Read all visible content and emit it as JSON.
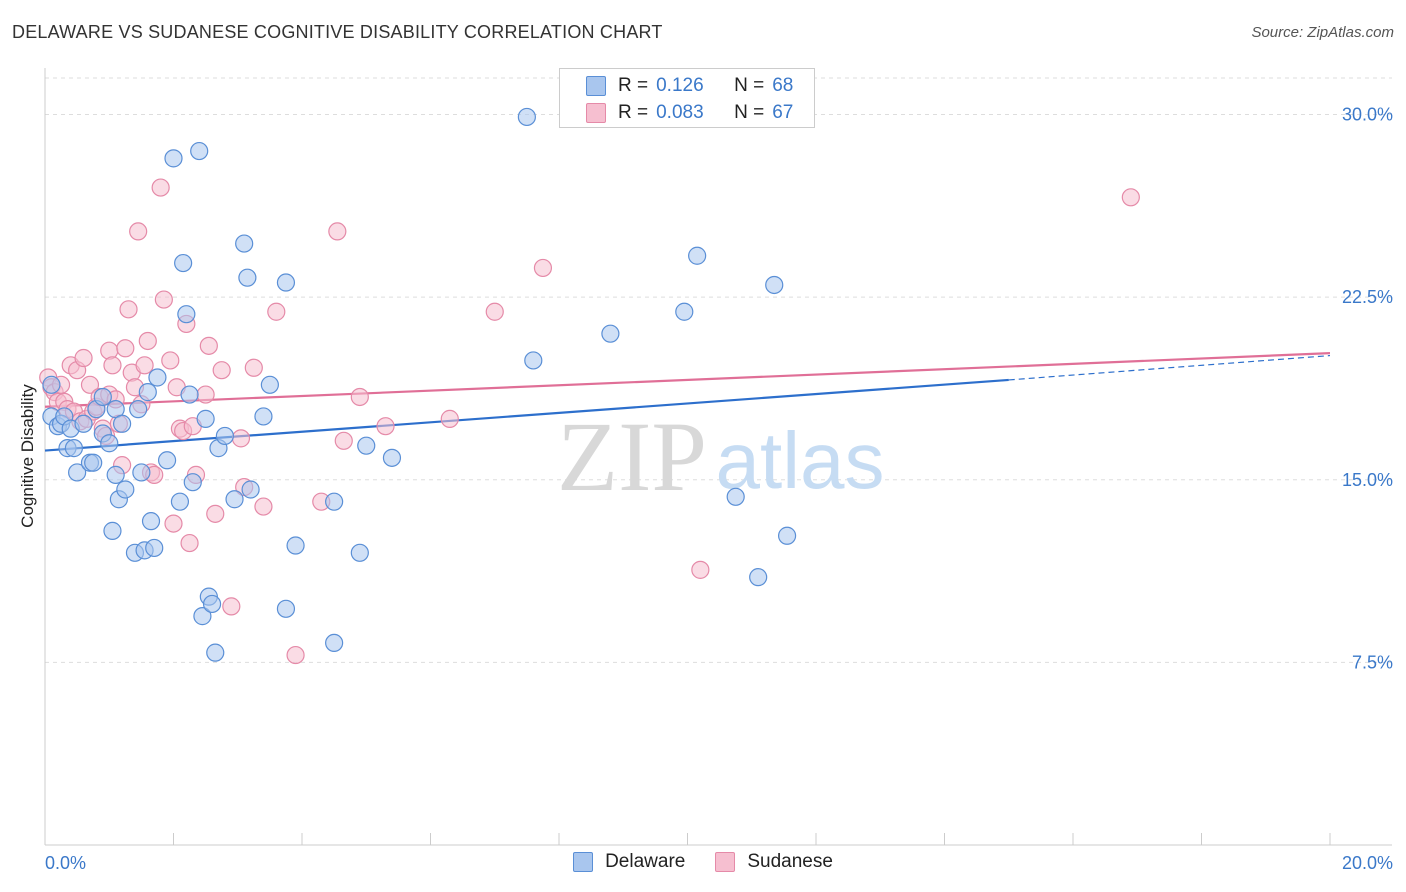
{
  "header": {
    "title": "DELAWARE VS SUDANESE COGNITIVE DISABILITY CORRELATION CHART",
    "source": "Source: ZipAtlas.com"
  },
  "watermark": {
    "zip": "ZIP",
    "atlas": "atlas"
  },
  "legend": {
    "rows": [
      {
        "r_label": "R =",
        "r_value": "0.126",
        "n_label": "N =",
        "n_value": "68"
      },
      {
        "r_label": "R =",
        "r_value": "0.083",
        "n_label": "N =",
        "n_value": "67"
      }
    ],
    "bottom": [
      {
        "label": "Delaware"
      },
      {
        "label": "Sudanese"
      }
    ]
  },
  "colors": {
    "delaware_fill": "#a9c6ee",
    "delaware_stroke": "#5a8fd6",
    "delaware_line": "#2d6fcc",
    "sudanese_fill": "#f6bfd0",
    "sudanese_stroke": "#e58aa8",
    "sudanese_line": "#e06f97",
    "tick_label": "#3a78c9",
    "grid": "#dddddd"
  },
  "chart_data": {
    "type": "scatter",
    "title": "DELAWARE VS SUDANESE COGNITIVE DISABILITY CORRELATION CHART",
    "xlabel": "",
    "ylabel": "Cognitive Disability",
    "xlim": [
      0,
      20
    ],
    "ylim": [
      0,
      31.5
    ],
    "x_tick_labels": [
      "0.0%",
      "20.0%"
    ],
    "y_ticks": [
      7.5,
      15.0,
      22.5,
      30.0
    ],
    "y_tick_labels": [
      "7.5%",
      "15.0%",
      "22.5%",
      "30.0%"
    ],
    "grid": "horizontal dashed",
    "legend_position": "top-center",
    "series": [
      {
        "name": "Delaware",
        "trend": {
          "x0": 0,
          "y0": 16.2,
          "x1": 15.0,
          "y1": 19.1,
          "dashed_to_x": 20.0,
          "dashed_to_y": 20.1
        },
        "points": [
          [
            0.1,
            18.9
          ],
          [
            0.1,
            17.6
          ],
          [
            0.2,
            17.2
          ],
          [
            0.25,
            17.3
          ],
          [
            0.3,
            17.6
          ],
          [
            0.35,
            16.3
          ],
          [
            0.4,
            17.1
          ],
          [
            0.45,
            16.3
          ],
          [
            0.5,
            15.3
          ],
          [
            0.6,
            17.3
          ],
          [
            0.7,
            15.7
          ],
          [
            0.75,
            15.7
          ],
          [
            0.8,
            17.9
          ],
          [
            0.9,
            18.4
          ],
          [
            0.9,
            16.9
          ],
          [
            1.0,
            16.5
          ],
          [
            1.05,
            12.9
          ],
          [
            1.1,
            17.9
          ],
          [
            1.1,
            15.2
          ],
          [
            1.15,
            14.2
          ],
          [
            1.2,
            17.3
          ],
          [
            1.25,
            14.6
          ],
          [
            1.4,
            12.0
          ],
          [
            1.45,
            17.9
          ],
          [
            1.5,
            15.3
          ],
          [
            1.55,
            12.1
          ],
          [
            1.6,
            18.6
          ],
          [
            1.65,
            13.3
          ],
          [
            1.7,
            12.2
          ],
          [
            1.75,
            19.2
          ],
          [
            1.9,
            15.8
          ],
          [
            2.0,
            28.2
          ],
          [
            2.1,
            14.1
          ],
          [
            2.15,
            23.9
          ],
          [
            2.2,
            21.8
          ],
          [
            2.25,
            18.5
          ],
          [
            2.3,
            14.9
          ],
          [
            2.4,
            28.5
          ],
          [
            2.45,
            9.4
          ],
          [
            2.5,
            17.5
          ],
          [
            2.55,
            10.2
          ],
          [
            2.6,
            9.9
          ],
          [
            2.65,
            7.9
          ],
          [
            2.7,
            16.3
          ],
          [
            2.8,
            16.8
          ],
          [
            2.95,
            14.2
          ],
          [
            3.1,
            24.7
          ],
          [
            3.15,
            23.3
          ],
          [
            3.2,
            14.6
          ],
          [
            3.4,
            17.6
          ],
          [
            3.5,
            18.9
          ],
          [
            3.75,
            23.1
          ],
          [
            3.75,
            9.7
          ],
          [
            3.9,
            12.3
          ],
          [
            4.5,
            8.3
          ],
          [
            4.5,
            14.1
          ],
          [
            4.9,
            12.0
          ],
          [
            5.0,
            16.4
          ],
          [
            5.4,
            15.9
          ],
          [
            7.5,
            29.9
          ],
          [
            7.6,
            19.9
          ],
          [
            8.8,
            21.0
          ],
          [
            9.95,
            21.9
          ],
          [
            10.15,
            24.2
          ],
          [
            10.75,
            14.3
          ],
          [
            11.1,
            11.0
          ],
          [
            11.35,
            23.0
          ],
          [
            11.55,
            12.7
          ]
        ]
      },
      {
        "name": "Sudanese",
        "trend": {
          "x0": 0,
          "y0": 18.0,
          "x1": 20.0,
          "y1": 20.2
        },
        "points": [
          [
            0.05,
            19.2
          ],
          [
            0.1,
            18.8
          ],
          [
            0.15,
            18.6
          ],
          [
            0.2,
            18.2
          ],
          [
            0.25,
            18.9
          ],
          [
            0.3,
            18.2
          ],
          [
            0.35,
            17.9
          ],
          [
            0.4,
            19.7
          ],
          [
            0.45,
            17.8
          ],
          [
            0.5,
            19.5
          ],
          [
            0.55,
            17.4
          ],
          [
            0.6,
            20.0
          ],
          [
            0.65,
            17.5
          ],
          [
            0.7,
            18.9
          ],
          [
            0.75,
            17.8
          ],
          [
            0.8,
            18.0
          ],
          [
            0.85,
            18.4
          ],
          [
            0.9,
            17.1
          ],
          [
            0.95,
            16.8
          ],
          [
            1.0,
            18.5
          ],
          [
            1.0,
            20.3
          ],
          [
            1.05,
            19.7
          ],
          [
            1.1,
            18.3
          ],
          [
            1.15,
            17.3
          ],
          [
            1.2,
            15.6
          ],
          [
            1.25,
            20.4
          ],
          [
            1.3,
            22.0
          ],
          [
            1.35,
            19.4
          ],
          [
            1.4,
            18.8
          ],
          [
            1.45,
            25.2
          ],
          [
            1.5,
            18.1
          ],
          [
            1.55,
            19.7
          ],
          [
            1.6,
            20.7
          ],
          [
            1.65,
            15.3
          ],
          [
            1.7,
            15.2
          ],
          [
            1.8,
            27.0
          ],
          [
            1.85,
            22.4
          ],
          [
            1.95,
            19.9
          ],
          [
            2.0,
            13.2
          ],
          [
            2.05,
            18.8
          ],
          [
            2.1,
            17.1
          ],
          [
            2.15,
            17.0
          ],
          [
            2.2,
            21.4
          ],
          [
            2.25,
            12.4
          ],
          [
            2.3,
            17.2
          ],
          [
            2.35,
            15.2
          ],
          [
            2.5,
            18.5
          ],
          [
            2.55,
            20.5
          ],
          [
            2.65,
            13.6
          ],
          [
            2.75,
            19.5
          ],
          [
            2.9,
            9.8
          ],
          [
            3.05,
            16.7
          ],
          [
            3.1,
            14.7
          ],
          [
            3.25,
            19.6
          ],
          [
            3.4,
            13.9
          ],
          [
            3.6,
            21.9
          ],
          [
            3.9,
            7.8
          ],
          [
            4.3,
            14.1
          ],
          [
            4.55,
            25.2
          ],
          [
            4.65,
            16.6
          ],
          [
            4.9,
            18.4
          ],
          [
            5.3,
            17.2
          ],
          [
            6.3,
            17.5
          ],
          [
            7.0,
            21.9
          ],
          [
            7.75,
            23.7
          ],
          [
            10.2,
            11.3
          ],
          [
            16.9,
            26.6
          ]
        ]
      }
    ]
  }
}
